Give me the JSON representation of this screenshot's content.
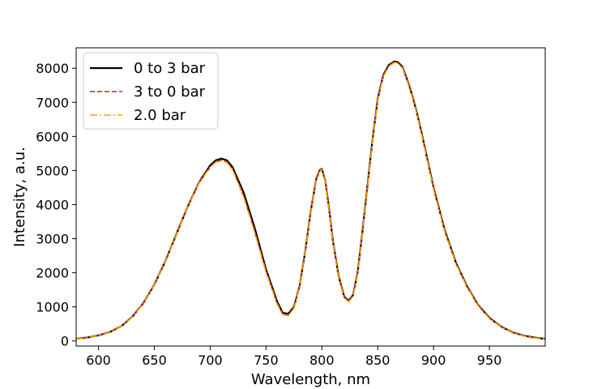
{
  "chart_data": {
    "type": "line",
    "title": "",
    "xlabel": "Wavelength, nm",
    "ylabel": "Intensity, a.u.",
    "xlim": [
      580,
      1000
    ],
    "ylim": [
      -150,
      8600
    ],
    "xticks": [
      600,
      650,
      700,
      750,
      800,
      850,
      900,
      950
    ],
    "yticks": [
      0,
      1000,
      2000,
      3000,
      4000,
      5000,
      6000,
      7000,
      8000
    ],
    "grid": false,
    "legend_position": "top-left",
    "x": [
      580,
      590,
      600,
      610,
      620,
      630,
      640,
      650,
      660,
      670,
      680,
      690,
      700,
      705,
      710,
      715,
      720,
      730,
      740,
      750,
      760,
      765,
      770,
      775,
      780,
      785,
      790,
      795,
      798,
      800,
      803,
      806,
      810,
      815,
      820,
      824,
      828,
      832,
      836,
      840,
      845,
      850,
      855,
      860,
      865,
      868,
      872,
      876,
      880,
      885,
      890,
      895,
      900,
      910,
      920,
      930,
      940,
      950,
      960,
      970,
      980,
      990,
      1000
    ],
    "series": [
      {
        "name": "0 to 3 bar",
        "color": "#000000",
        "dash": "solid",
        "values": [
          60,
          100,
          160,
          260,
          420,
          700,
          1100,
          1650,
          2350,
          3150,
          3950,
          4650,
          5150,
          5300,
          5350,
          5300,
          5100,
          4350,
          3300,
          2100,
          1150,
          820,
          800,
          1000,
          1600,
          2600,
          3800,
          4750,
          5000,
          5050,
          4700,
          4000,
          2900,
          1900,
          1300,
          1180,
          1350,
          2000,
          3100,
          4300,
          5800,
          7100,
          7800,
          8100,
          8200,
          8180,
          8050,
          7700,
          7300,
          6700,
          6000,
          5250,
          4500,
          3250,
          2300,
          1600,
          1050,
          680,
          430,
          260,
          160,
          100,
          60
        ]
      },
      {
        "name": "3 to 0 bar",
        "color": "#cc2222",
        "dash": "dashed",
        "values": [
          60,
          100,
          160,
          260,
          420,
          700,
          1100,
          1650,
          2350,
          3150,
          3950,
          4650,
          5100,
          5250,
          5300,
          5250,
          5050,
          4250,
          3200,
          2050,
          1100,
          780,
          760,
          980,
          1600,
          2600,
          3800,
          4750,
          4980,
          5050,
          4700,
          3980,
          2880,
          1880,
          1280,
          1170,
          1340,
          1980,
          3080,
          4280,
          5780,
          7080,
          7780,
          8080,
          8180,
          8160,
          8030,
          7680,
          7280,
          6680,
          5980,
          5230,
          4480,
          3230,
          2280,
          1590,
          1040,
          670,
          425,
          255,
          155,
          95,
          58
        ]
      },
      {
        "name": "2.0 bar",
        "color": "#ffa500",
        "dash": "dashdot",
        "values": [
          55,
          95,
          155,
          255,
          415,
          690,
          1090,
          1640,
          2340,
          3140,
          3940,
          4630,
          5100,
          5240,
          5290,
          5230,
          5030,
          4220,
          3170,
          2020,
          1080,
          760,
          740,
          960,
          1580,
          2580,
          3780,
          4730,
          4960,
          5030,
          4680,
          3960,
          2860,
          1860,
          1260,
          1150,
          1320,
          1960,
          3060,
          4260,
          5760,
          7060,
          7760,
          8060,
          8170,
          8150,
          8020,
          7660,
          7260,
          6660,
          5960,
          5210,
          4460,
          3210,
          2270,
          1580,
          1030,
          660,
          420,
          250,
          150,
          90,
          55
        ]
      }
    ]
  }
}
